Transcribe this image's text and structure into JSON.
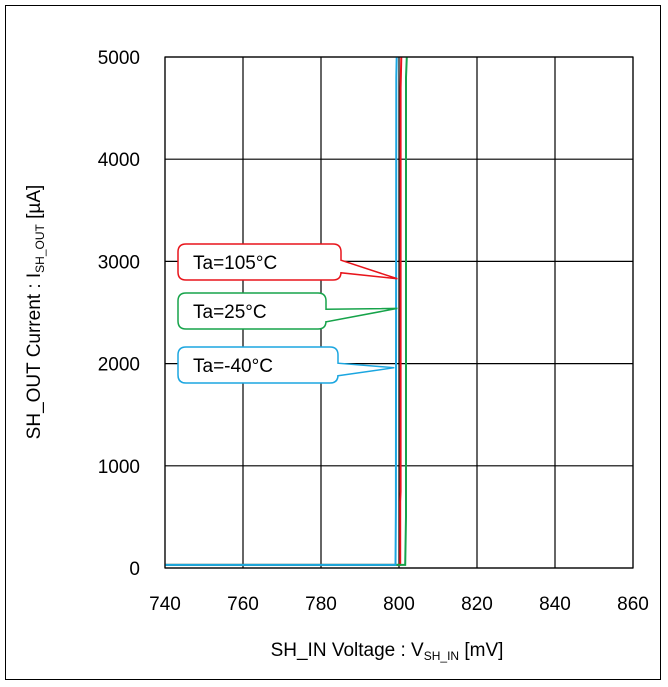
{
  "chart_data": {
    "type": "line",
    "xlabel": {
      "main": "SH_IN Voltage : V",
      "sub": "SH_IN",
      "unit": " [mV]"
    },
    "ylabel": {
      "main": "SH_OUT Current : I",
      "sub": "SH_OUT",
      "unit": " [µA]"
    },
    "xlim": [
      740,
      860
    ],
    "ylim": [
      0,
      5000
    ],
    "xticks": [
      "740",
      "760",
      "780",
      "800",
      "820",
      "840",
      "860"
    ],
    "yticks": [
      "0",
      "1000",
      "2000",
      "3000",
      "4000",
      "5000"
    ],
    "grid": true,
    "series": [
      {
        "name": "Ta=105°C",
        "color": "#e8141b",
        "x": [
          740,
          800.3,
          800.3,
          800.4,
          800.4,
          800.6
        ],
        "y": [
          30,
          30,
          650,
          750,
          4700,
          5000
        ]
      },
      {
        "name": "Ta=25°C",
        "color": "#16a34a",
        "x": [
          740,
          801.6,
          801.8,
          801.8,
          802.0
        ],
        "y": [
          30,
          30,
          500,
          4800,
          5000
        ]
      },
      {
        "name": "Ta=-40°C",
        "color": "#1ba6e0",
        "x": [
          740,
          799.1,
          799.2,
          799.3,
          799.4
        ],
        "y": [
          30,
          30,
          600,
          4800,
          5000
        ]
      }
    ],
    "annotations": [
      {
        "label": "Ta=105°C",
        "color": "#e8141b",
        "target_x": 799.6,
        "target_y": 2830
      },
      {
        "label": "Ta=25°C",
        "color": "#16a34a",
        "target_x": 799.6,
        "target_y": 2540
      },
      {
        "label": "Ta=-40°C",
        "color": "#1ba6e0",
        "target_x": 798.8,
        "target_y": 1960
      }
    ]
  }
}
